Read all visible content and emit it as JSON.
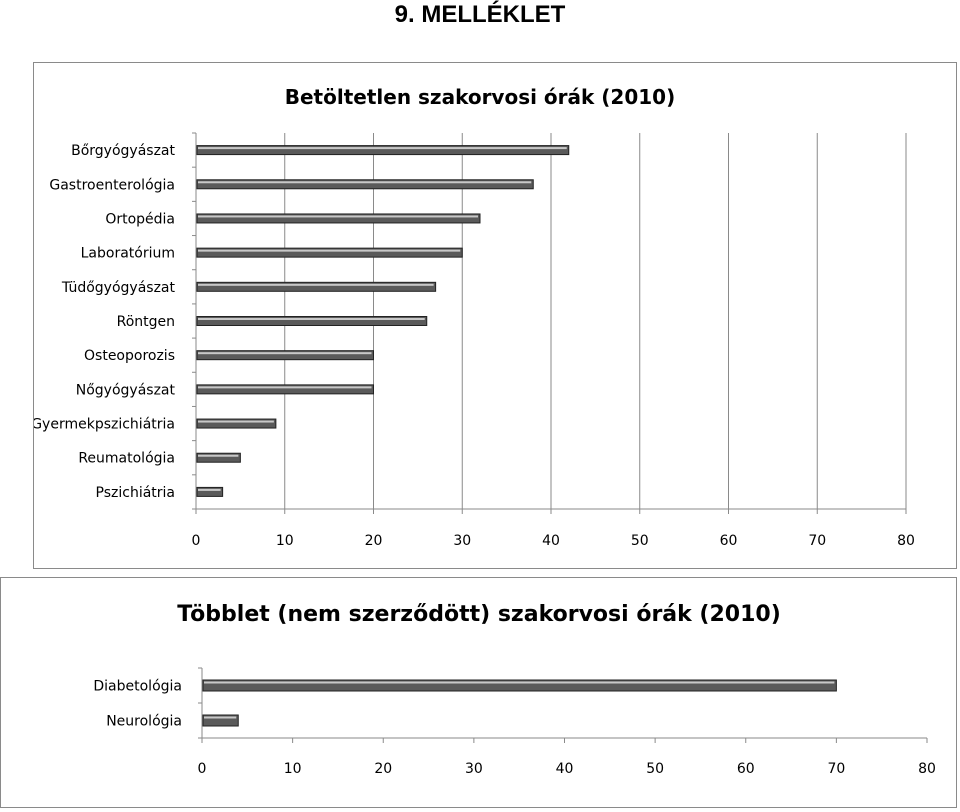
{
  "page": {
    "heading": "9. MELLÉKLET"
  },
  "chart_data": [
    {
      "type": "bar",
      "orientation": "horizontal",
      "title": "Betöltetlen szakorvosi órák (2010)",
      "categories": [
        "Bőrgyógyászat",
        "Gastroenterológia",
        "Ortopédia",
        "Laboratórium",
        "Tüdőgyógyászat",
        "Röntgen",
        "Osteoporozis",
        "Nőgyógyászat",
        "Gyermekpszichiátria",
        "Reumatológia",
        "Pszichiátria"
      ],
      "values": [
        42,
        38,
        32,
        30,
        27,
        26,
        20,
        20,
        9,
        5,
        3
      ],
      "xlim": [
        0,
        80
      ],
      "xticks": [
        "0",
        "10",
        "20",
        "30",
        "40",
        "50",
        "60",
        "70",
        "80"
      ],
      "grid": "vertical",
      "legend": "none",
      "bar_color": "#5a5a5a"
    },
    {
      "type": "bar",
      "orientation": "horizontal",
      "title": "Többlet (nem szerződött) szakorvosi órák (2010)",
      "categories": [
        "Diabetológia",
        "Neurológia"
      ],
      "values": [
        70,
        4
      ],
      "xlim": [
        0,
        80
      ],
      "xticks": [
        "0",
        "10",
        "20",
        "30",
        "40",
        "50",
        "60",
        "70",
        "80"
      ],
      "grid": "none",
      "legend": "none",
      "bar_color": "#5a5a5a"
    }
  ]
}
